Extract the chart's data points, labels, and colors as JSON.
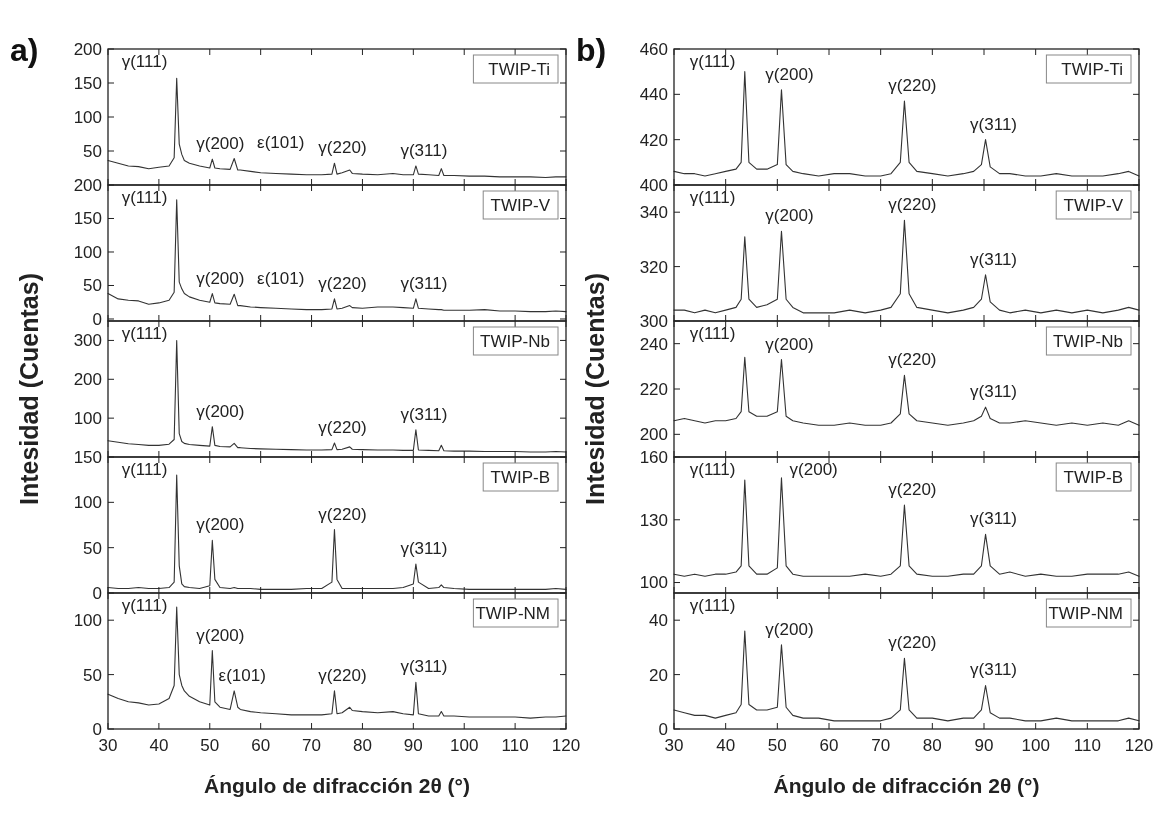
{
  "chart_data": [
    {
      "type": "line",
      "title": "TWIP-Ti",
      "tick_labels": "y",
      "xlim": [
        30,
        120
      ],
      "xticks": [
        30,
        40,
        50,
        60,
        70,
        80,
        90,
        100,
        110,
        120
      ],
      "ylim": [
        0,
        200
      ],
      "yticks": [
        50,
        100,
        150,
        200
      ],
      "x": [
        30,
        32,
        34,
        36,
        38,
        40,
        42,
        43,
        43.5,
        44,
        44.5,
        45,
        46,
        48,
        50,
        50.5,
        51,
        52,
        54,
        54.8,
        55.5,
        56,
        58,
        60,
        63,
        66,
        69,
        72,
        74,
        74.5,
        75,
        76,
        77.5,
        78,
        80,
        83,
        86,
        88,
        90,
        90.5,
        91,
        93,
        95,
        95.5,
        96,
        98,
        101,
        104,
        107,
        110,
        113,
        116,
        118,
        120
      ],
      "series": [
        {
          "color": "#333333",
          "values": [
            36,
            32,
            28,
            27,
            24,
            26,
            28,
            40,
            157,
            60,
            45,
            36,
            32,
            28,
            25,
            38,
            25,
            24,
            23,
            39,
            22,
            22,
            20,
            18,
            17,
            16,
            15,
            15,
            16,
            32,
            16,
            18,
            22,
            17,
            16,
            15,
            17,
            15,
            15,
            28,
            16,
            15,
            14,
            24,
            14,
            14,
            13,
            13,
            12,
            12,
            12,
            11,
            12,
            12
          ]
        }
      ],
      "annotations": [
        "a)",
        {
          "text": "γ(111)",
          "x": 43.5,
          "y": 157
        },
        {
          "text": "γ(200)",
          "x": 50.5,
          "y": 38
        },
        {
          "text": "ε(101)",
          "x": 54.8,
          "y": 39
        },
        {
          "text": "γ(220)",
          "x": 74.5,
          "y": 32
        },
        {
          "text": "γ(311)",
          "x": 90.5,
          "y": 28
        }
      ]
    },
    {
      "type": "line",
      "title": "TWIP-V",
      "tick_labels": "y",
      "xlim": [
        30,
        120
      ],
      "xticks": [
        30,
        40,
        50,
        60,
        70,
        80,
        90,
        100,
        110,
        120
      ],
      "ylim": [
        -3,
        200
      ],
      "yticks": [
        0,
        50,
        100,
        150,
        200
      ],
      "x": [
        30,
        32,
        34,
        36,
        38,
        40,
        42,
        43,
        43.5,
        44,
        44.5,
        45,
        46,
        48,
        50,
        50.5,
        51,
        52,
        54,
        54.8,
        55.5,
        56,
        58,
        60,
        63,
        66,
        69,
        72,
        74,
        74.5,
        75,
        76,
        77.5,
        78,
        80,
        83,
        86,
        88,
        90,
        90.5,
        91,
        93,
        95,
        95.5,
        96,
        98,
        101,
        104,
        107,
        110,
        113,
        116,
        118,
        120
      ],
      "series": [
        {
          "color": "#333333",
          "values": [
            38,
            30,
            28,
            27,
            22,
            24,
            28,
            40,
            178,
            55,
            45,
            38,
            33,
            28,
            25,
            38,
            24,
            23,
            22,
            37,
            20,
            20,
            18,
            17,
            16,
            15,
            14,
            14,
            15,
            30,
            15,
            16,
            20,
            17,
            16,
            18,
            18,
            17,
            16,
            30,
            16,
            15,
            14,
            14,
            13,
            13,
            13,
            14,
            12,
            12,
            11,
            11,
            12,
            11
          ]
        }
      ],
      "annotations": [
        {
          "text": "γ(111)",
          "x": 43.5,
          "y": 178
        },
        {
          "text": "γ(200)",
          "x": 50.5,
          "y": 38
        },
        {
          "text": "ε(101)",
          "x": 54.8,
          "y": 37
        },
        {
          "text": "γ(220)",
          "x": 74.5,
          "y": 30
        },
        {
          "text": "γ(311)",
          "x": 90.5,
          "y": 30
        }
      ]
    },
    {
      "type": "line",
      "title": "TWIP-Nb",
      "tick_labels": "y",
      "ylabel": "Intesidad (Cuentas)",
      "xlim": [
        30,
        120
      ],
      "xticks": [
        30,
        40,
        50,
        60,
        70,
        80,
        90,
        100,
        110,
        120
      ],
      "ylim": [
        0,
        350
      ],
      "yticks": [
        100,
        200,
        300
      ],
      "x": [
        30,
        32,
        34,
        36,
        38,
        40,
        42,
        43,
        43.5,
        44,
        44.5,
        45,
        46,
        48,
        50,
        50.5,
        51,
        52,
        54,
        54.8,
        55.5,
        56,
        58,
        60,
        63,
        66,
        69,
        72,
        74,
        74.5,
        75,
        76,
        77.5,
        78,
        80,
        83,
        86,
        88,
        90,
        90.5,
        91,
        93,
        95,
        95.5,
        96,
        98,
        101,
        104,
        107,
        110,
        113,
        116,
        118,
        120
      ],
      "series": [
        {
          "color": "#333333",
          "values": [
            42,
            38,
            34,
            32,
            30,
            30,
            33,
            45,
            300,
            60,
            40,
            35,
            32,
            30,
            28,
            78,
            30,
            27,
            26,
            35,
            24,
            24,
            22,
            21,
            20,
            19,
            18,
            18,
            19,
            36,
            19,
            20,
            26,
            20,
            19,
            18,
            18,
            17,
            17,
            70,
            18,
            17,
            16,
            30,
            16,
            15,
            15,
            14,
            14,
            14,
            13,
            13,
            14,
            13
          ]
        }
      ],
      "annotations": [
        {
          "text": "γ(111)",
          "x": 43.5,
          "y": 300
        },
        {
          "text": "γ(200)",
          "x": 50.5,
          "y": 78
        },
        {
          "text": "γ(220)",
          "x": 74.5,
          "y": 36
        },
        {
          "text": "γ(311)",
          "x": 90.5,
          "y": 70
        }
      ]
    },
    {
      "type": "line",
      "title": "TWIP-B",
      "tick_labels": "y",
      "xlim": [
        30,
        120
      ],
      "xticks": [
        30,
        40,
        50,
        60,
        70,
        80,
        90,
        100,
        110,
        120
      ],
      "ylim": [
        0,
        150
      ],
      "yticks": [
        0,
        50,
        100,
        150
      ],
      "x": [
        30,
        32,
        34,
        36,
        38,
        40,
        42,
        43,
        43.5,
        44,
        44.5,
        45,
        46,
        48,
        50,
        50.5,
        51,
        52,
        54,
        54.8,
        55.5,
        56,
        58,
        60,
        63,
        66,
        69,
        72,
        74,
        74.5,
        75,
        76,
        77.5,
        78,
        80,
        83,
        86,
        88,
        90,
        90.5,
        91,
        93,
        95,
        95.5,
        96,
        98,
        101,
        104,
        107,
        110,
        113,
        116,
        118,
        120
      ],
      "series": [
        {
          "color": "#333333",
          "values": [
            6,
            5,
            5,
            6,
            5,
            5,
            6,
            12,
            130,
            30,
            10,
            7,
            6,
            5,
            8,
            58,
            15,
            6,
            5,
            6,
            5,
            5,
            5,
            4,
            4,
            4,
            5,
            5,
            12,
            70,
            15,
            5,
            5,
            5,
            5,
            5,
            5,
            6,
            10,
            32,
            12,
            5,
            6,
            9,
            6,
            5,
            4,
            4,
            4,
            4,
            4,
            4,
            5,
            4
          ]
        }
      ],
      "annotations": [
        {
          "text": "γ(111)",
          "x": 43.5,
          "y": 130
        },
        {
          "text": "γ(200)",
          "x": 50.5,
          "y": 58
        },
        {
          "text": "γ(220)",
          "x": 74.5,
          "y": 70
        },
        {
          "text": "γ(311)",
          "x": 90.5,
          "y": 32
        }
      ]
    },
    {
      "type": "line",
      "title": "TWIP-NM",
      "xlabel": "Ángulo de difracción 2θ (°)",
      "xlim": [
        30,
        120
      ],
      "xticks": [
        30,
        40,
        50,
        60,
        70,
        80,
        90,
        100,
        110,
        120
      ],
      "ylim": [
        0,
        125
      ],
      "yticks": [
        0,
        50,
        100
      ],
      "x": [
        30,
        32,
        34,
        36,
        38,
        40,
        42,
        43,
        43.5,
        44,
        44.5,
        45,
        46,
        48,
        50,
        50.5,
        51,
        52,
        54,
        54.8,
        55.5,
        56,
        58,
        60,
        63,
        66,
        69,
        72,
        74,
        74.5,
        75,
        76,
        77.5,
        78,
        80,
        83,
        86,
        88,
        90,
        90.5,
        91,
        93,
        95,
        95.5,
        96,
        98,
        101,
        104,
        107,
        110,
        113,
        116,
        118,
        120
      ],
      "series": [
        {
          "color": "#333333",
          "values": [
            32,
            28,
            25,
            24,
            22,
            23,
            28,
            40,
            112,
            50,
            40,
            35,
            30,
            25,
            22,
            72,
            25,
            20,
            18,
            35,
            20,
            18,
            16,
            15,
            14,
            13,
            13,
            13,
            14,
            35,
            14,
            15,
            20,
            17,
            16,
            15,
            16,
            14,
            13,
            43,
            14,
            12,
            12,
            16,
            12,
            12,
            11,
            11,
            11,
            11,
            10,
            11,
            11,
            12
          ]
        }
      ],
      "annotations": [
        {
          "text": "γ(111)",
          "x": 43.5,
          "y": 112
        },
        {
          "text": "γ(200)",
          "x": 50.5,
          "y": 72
        },
        {
          "text": "ε(101)",
          "x": 54.8,
          "y": 35
        },
        {
          "text": "γ(220)",
          "x": 74.5,
          "y": 35
        },
        {
          "text": "γ(311)",
          "x": 90.5,
          "y": 43
        }
      ]
    },
    {
      "type": "line",
      "title": "TWIP-Ti",
      "tick_labels": "y",
      "xlim": [
        30,
        120
      ],
      "xticks": [
        30,
        40,
        50,
        60,
        70,
        80,
        90,
        100,
        110,
        120
      ],
      "ylim": [
        400,
        460
      ],
      "yticks": [
        400,
        420,
        440,
        460
      ],
      "x": [
        30,
        32,
        34,
        36,
        38,
        40,
        42,
        43,
        43.7,
        44.5,
        46,
        48,
        50,
        50.8,
        51.7,
        53,
        55,
        58,
        61,
        64,
        67,
        70,
        72,
        73.8,
        74.6,
        75.5,
        77,
        80,
        83,
        86,
        88,
        89.5,
        90.3,
        91.2,
        93,
        95,
        98,
        101,
        104,
        107,
        110,
        113,
        116,
        118,
        120
      ],
      "series": [
        {
          "color": "#333333",
          "values": [
            406,
            405,
            405,
            404,
            405,
            406,
            407,
            410,
            450,
            410,
            407,
            407,
            409,
            442,
            409,
            406,
            405,
            404,
            405,
            405,
            404,
            404,
            405,
            410,
            437,
            410,
            406,
            405,
            404,
            405,
            406,
            409,
            420,
            408,
            405,
            405,
            404,
            404,
            405,
            404,
            404,
            404,
            405,
            406,
            404
          ]
        }
      ],
      "annotations": [
        "b)",
        {
          "text": "γ(111)",
          "x": 43.7,
          "y": 450
        },
        {
          "text": "γ(200)",
          "x": 50.8,
          "y": 442
        },
        {
          "text": "γ(220)",
          "x": 74.6,
          "y": 437
        },
        {
          "text": "γ(311)",
          "x": 90.3,
          "y": 420
        }
      ]
    },
    {
      "type": "line",
      "title": "TWIP-V",
      "tick_labels": "y",
      "xlim": [
        30,
        120
      ],
      "xticks": [
        30,
        40,
        50,
        60,
        70,
        80,
        90,
        100,
        110,
        120
      ],
      "ylim": [
        300,
        350
      ],
      "yticks": [
        300,
        320,
        340
      ],
      "x": [
        30,
        32,
        34,
        36,
        38,
        40,
        42,
        43,
        43.7,
        44.5,
        46,
        48,
        50,
        50.8,
        51.7,
        53,
        55,
        58,
        61,
        64,
        67,
        70,
        72,
        73.8,
        74.6,
        75.5,
        77,
        80,
        83,
        86,
        88,
        89.5,
        90.3,
        91.2,
        93,
        95,
        98,
        101,
        104,
        107,
        110,
        113,
        116,
        118,
        120
      ],
      "series": [
        {
          "color": "#333333",
          "values": [
            304,
            304,
            303,
            304,
            303,
            304,
            305,
            308,
            331,
            308,
            305,
            306,
            308,
            333,
            308,
            305,
            303,
            303,
            303,
            304,
            303,
            304,
            305,
            310,
            337,
            310,
            305,
            304,
            303,
            304,
            305,
            308,
            317,
            307,
            304,
            303,
            304,
            303,
            304,
            303,
            304,
            303,
            304,
            305,
            304
          ]
        }
      ],
      "annotations": [
        {
          "text": "γ(111)",
          "x": 43.7,
          "y": 331
        },
        {
          "text": "γ(200)",
          "x": 50.8,
          "y": 333
        },
        {
          "text": "γ(220)",
          "x": 74.6,
          "y": 337
        },
        {
          "text": "γ(311)",
          "x": 90.3,
          "y": 317
        }
      ]
    },
    {
      "type": "line",
      "title": "TWIP-Nb",
      "tick_labels": "y",
      "ylabel": "Intesidad (Cuentas)",
      "xlim": [
        30,
        120
      ],
      "xticks": [
        30,
        40,
        50,
        60,
        70,
        80,
        90,
        100,
        110,
        120
      ],
      "ylim": [
        190,
        250
      ],
      "yticks": [
        200,
        220,
        240
      ],
      "x": [
        30,
        32,
        34,
        36,
        38,
        40,
        42,
        43,
        43.7,
        44.5,
        46,
        48,
        50,
        50.8,
        51.7,
        53,
        55,
        58,
        61,
        64,
        67,
        70,
        72,
        73.8,
        74.6,
        75.5,
        77,
        80,
        83,
        86,
        88,
        89.5,
        90.3,
        91.2,
        93,
        95,
        98,
        101,
        104,
        107,
        110,
        113,
        116,
        118,
        120
      ],
      "series": [
        {
          "color": "#333333",
          "values": [
            206,
            207,
            206,
            205,
            206,
            206,
            207,
            210,
            234,
            210,
            208,
            208,
            210,
            233,
            208,
            206,
            205,
            204,
            204,
            205,
            204,
            204,
            205,
            209,
            226,
            209,
            206,
            205,
            204,
            205,
            206,
            208,
            212,
            207,
            205,
            205,
            206,
            205,
            204,
            205,
            204,
            205,
            204,
            206,
            204
          ]
        }
      ],
      "annotations": [
        {
          "text": "γ(111)",
          "x": 43.7,
          "y": 234
        },
        {
          "text": "γ(200)",
          "x": 50.8,
          "y": 233
        },
        {
          "text": "γ(220)",
          "x": 74.6,
          "y": 226
        },
        {
          "text": "γ(311)",
          "x": 90.3,
          "y": 212
        }
      ]
    },
    {
      "type": "line",
      "title": "TWIP-B",
      "tick_labels": "y",
      "xlim": [
        30,
        120
      ],
      "xticks": [
        30,
        40,
        50,
        60,
        70,
        80,
        90,
        100,
        110,
        120
      ],
      "ylim": [
        95,
        160
      ],
      "yticks": [
        100,
        130,
        160
      ],
      "x": [
        30,
        32,
        34,
        36,
        38,
        40,
        42,
        43,
        43.7,
        44.5,
        46,
        48,
        50,
        50.8,
        51.7,
        53,
        55,
        58,
        61,
        64,
        67,
        70,
        72,
        73.8,
        74.6,
        75.5,
        77,
        80,
        83,
        86,
        88,
        89.5,
        90.3,
        91.2,
        93,
        95,
        98,
        101,
        104,
        107,
        110,
        113,
        116,
        118,
        120
      ],
      "series": [
        {
          "color": "#333333",
          "values": [
            104,
            103,
            104,
            103,
            104,
            104,
            105,
            108,
            149,
            108,
            104,
            104,
            107,
            150,
            108,
            104,
            103,
            103,
            103,
            103,
            104,
            103,
            104,
            108,
            137,
            108,
            104,
            103,
            103,
            104,
            104,
            108,
            123,
            108,
            104,
            105,
            103,
            104,
            103,
            103,
            104,
            104,
            104,
            105,
            103
          ]
        }
      ],
      "annotations": [
        {
          "text": "γ(111)",
          "x": 43.7,
          "y": 149
        },
        {
          "text": "γ(200)",
          "x": 50.8,
          "y": 150
        },
        {
          "text": "γ(220)",
          "x": 74.6,
          "y": 137
        },
        {
          "text": "γ(311)",
          "x": 90.3,
          "y": 123
        }
      ]
    },
    {
      "type": "line",
      "title": "TWIP-NM",
      "xlabel": "Ángulo de difracción 2θ (°)",
      "xlim": [
        30,
        120
      ],
      "xticks": [
        30,
        40,
        50,
        60,
        70,
        80,
        90,
        100,
        110,
        120
      ],
      "ylim": [
        0,
        50
      ],
      "yticks": [
        0,
        20,
        40
      ],
      "x": [
        30,
        32,
        34,
        36,
        38,
        40,
        42,
        43,
        43.7,
        44.5,
        46,
        48,
        50,
        50.8,
        51.7,
        53,
        55,
        58,
        61,
        64,
        67,
        70,
        72,
        73.8,
        74.6,
        75.5,
        77,
        80,
        83,
        86,
        88,
        89.5,
        90.3,
        91.2,
        93,
        95,
        98,
        101,
        104,
        107,
        110,
        113,
        116,
        118,
        120
      ],
      "series": [
        {
          "color": "#333333",
          "values": [
            7,
            6,
            5,
            5,
            4,
            5,
            6,
            9,
            36,
            9,
            7,
            7,
            8,
            31,
            8,
            5,
            4,
            4,
            3,
            3,
            3,
            3,
            4,
            7,
            26,
            7,
            4,
            4,
            3,
            4,
            4,
            7,
            16,
            6,
            4,
            4,
            3,
            3,
            4,
            3,
            3,
            3,
            3,
            4,
            3
          ]
        }
      ],
      "annotations": [
        {
          "text": "γ(111)",
          "x": 43.7,
          "y": 36
        },
        {
          "text": "γ(200)",
          "x": 50.8,
          "y": 31
        },
        {
          "text": "γ(220)",
          "x": 74.6,
          "y": 26
        },
        {
          "text": "γ(311)",
          "x": 90.3,
          "y": 16
        }
      ]
    }
  ]
}
